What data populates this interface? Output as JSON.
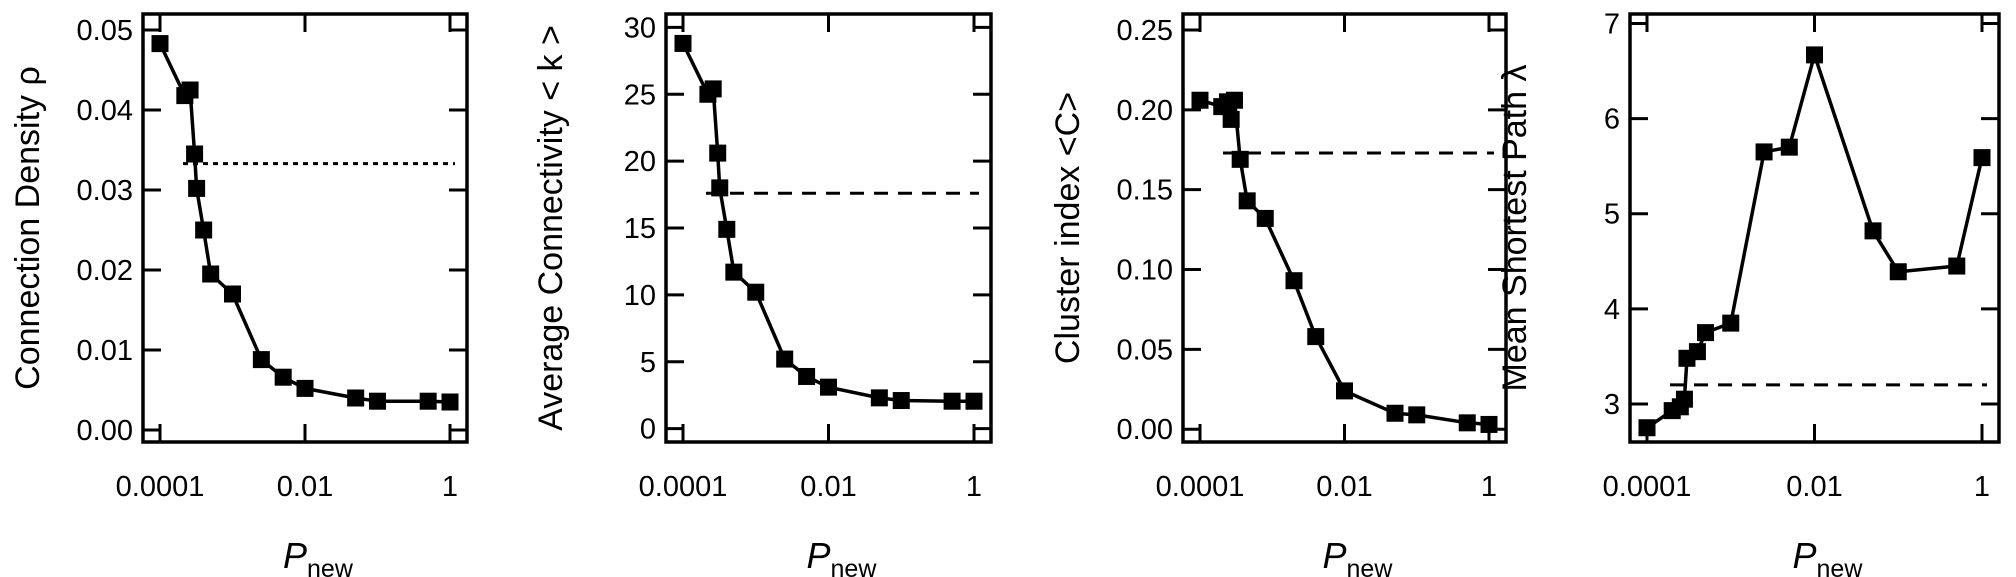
{
  "chart_data": [
    {
      "type": "line",
      "x_scale": "log",
      "ylabel": "Connection Density ρ",
      "xlabel": {
        "main": "P",
        "sub": "new"
      },
      "xlim": [
        0.0001,
        1
      ],
      "ylim": [
        -0.0015,
        0.052
      ],
      "x_ticks": [
        {
          "value": 0.0001,
          "label": "0.0001"
        },
        {
          "value": 0.01,
          "label": "0.01"
        },
        {
          "value": 1,
          "label": "1"
        }
      ],
      "y_ticks": [
        {
          "value": 0.0,
          "label": "0.00"
        },
        {
          "value": 0.01,
          "label": "0.01"
        },
        {
          "value": 0.02,
          "label": "0.02"
        },
        {
          "value": 0.03,
          "label": "0.03"
        },
        {
          "value": 0.04,
          "label": "0.04"
        },
        {
          "value": 0.05,
          "label": "0.05"
        }
      ],
      "reference_line": {
        "y": 0.0333,
        "style": "dotted"
      },
      "x": [
        0.0001,
        0.00022,
        0.00026,
        0.0003,
        0.00032,
        0.0004,
        0.0005,
        0.001,
        0.0025,
        0.005,
        0.01,
        0.05,
        0.1,
        0.5,
        1
      ],
      "y": [
        0.0483,
        0.0418,
        0.0425,
        0.0345,
        0.0302,
        0.025,
        0.0195,
        0.017,
        0.0088,
        0.0066,
        0.0052,
        0.004,
        0.0036,
        0.0036,
        0.0035
      ]
    },
    {
      "type": "line",
      "x_scale": "log",
      "ylabel": "Average Connectivity < k >",
      "xlabel": {
        "main": "P",
        "sub": "new"
      },
      "xlim": [
        0.0001,
        1
      ],
      "ylim": [
        -1,
        31
      ],
      "x_ticks": [
        {
          "value": 0.0001,
          "label": "0.0001"
        },
        {
          "value": 0.01,
          "label": "0.01"
        },
        {
          "value": 1,
          "label": "1"
        }
      ],
      "y_ticks": [
        {
          "value": 0,
          "label": "0"
        },
        {
          "value": 5,
          "label": "5"
        },
        {
          "value": 10,
          "label": "10"
        },
        {
          "value": 15,
          "label": "15"
        },
        {
          "value": 20,
          "label": "20"
        },
        {
          "value": 25,
          "label": "25"
        },
        {
          "value": 30,
          "label": "30"
        }
      ],
      "reference_line": {
        "y": 17.6,
        "style": "dashed"
      },
      "x": [
        0.0001,
        0.00022,
        0.00026,
        0.0003,
        0.00032,
        0.0004,
        0.0005,
        0.001,
        0.0025,
        0.005,
        0.01,
        0.05,
        0.1,
        0.5,
        1
      ],
      "y": [
        28.8,
        25.0,
        25.4,
        20.6,
        18.0,
        14.9,
        11.7,
        10.2,
        5.2,
        3.9,
        3.1,
        2.3,
        2.1,
        2.05,
        2.05
      ]
    },
    {
      "type": "line",
      "x_scale": "log",
      "ylabel": "Cluster index <C>",
      "xlabel": {
        "main": "P",
        "sub": "new"
      },
      "xlim": [
        0.0001,
        1
      ],
      "ylim": [
        -0.008,
        0.26
      ],
      "x_ticks": [
        {
          "value": 0.0001,
          "label": "0.0001"
        },
        {
          "value": 0.01,
          "label": "0.01"
        },
        {
          "value": 1,
          "label": "1"
        }
      ],
      "y_ticks": [
        {
          "value": 0.0,
          "label": "0.00"
        },
        {
          "value": 0.05,
          "label": "0.05"
        },
        {
          "value": 0.1,
          "label": "0.10"
        },
        {
          "value": 0.15,
          "label": "0.15"
        },
        {
          "value": 0.2,
          "label": "0.20"
        },
        {
          "value": 0.25,
          "label": "0.25"
        }
      ],
      "reference_line": {
        "y": 0.173,
        "style": "dashed"
      },
      "x": [
        0.0001,
        0.0002,
        0.00024,
        0.00027,
        0.0003,
        0.00036,
        0.00045,
        0.0008,
        0.002,
        0.004,
        0.01,
        0.05,
        0.1,
        0.5,
        1
      ],
      "y": [
        0.206,
        0.202,
        0.205,
        0.194,
        0.206,
        0.169,
        0.143,
        0.132,
        0.093,
        0.058,
        0.024,
        0.01,
        0.009,
        0.004,
        0.003
      ]
    },
    {
      "type": "line",
      "x_scale": "log",
      "ylabel": "Mean Shortest Path λ",
      "xlabel": {
        "main": "P",
        "sub": "new"
      },
      "xlim": [
        0.0001,
        1
      ],
      "ylim": [
        2.6,
        7.1
      ],
      "x_ticks": [
        {
          "value": 0.0001,
          "label": "0.0001"
        },
        {
          "value": 0.01,
          "label": "0.01"
        },
        {
          "value": 1,
          "label": "1"
        }
      ],
      "y_ticks": [
        {
          "value": 3,
          "label": "3"
        },
        {
          "value": 4,
          "label": "4"
        },
        {
          "value": 5,
          "label": "5"
        },
        {
          "value": 6,
          "label": "6"
        },
        {
          "value": 7,
          "label": "7"
        }
      ],
      "reference_line": {
        "y": 3.2,
        "style": "dashed"
      },
      "x": [
        0.0001,
        0.0002,
        0.00025,
        0.00028,
        0.0003,
        0.0004,
        0.0005,
        0.001,
        0.0025,
        0.005,
        0.01,
        0.05,
        0.1,
        0.5,
        1
      ],
      "y": [
        2.75,
        2.93,
        2.97,
        3.05,
        3.48,
        3.55,
        3.75,
        3.85,
        5.65,
        5.7,
        6.67,
        4.82,
        4.39,
        4.45,
        5.59
      ]
    }
  ]
}
